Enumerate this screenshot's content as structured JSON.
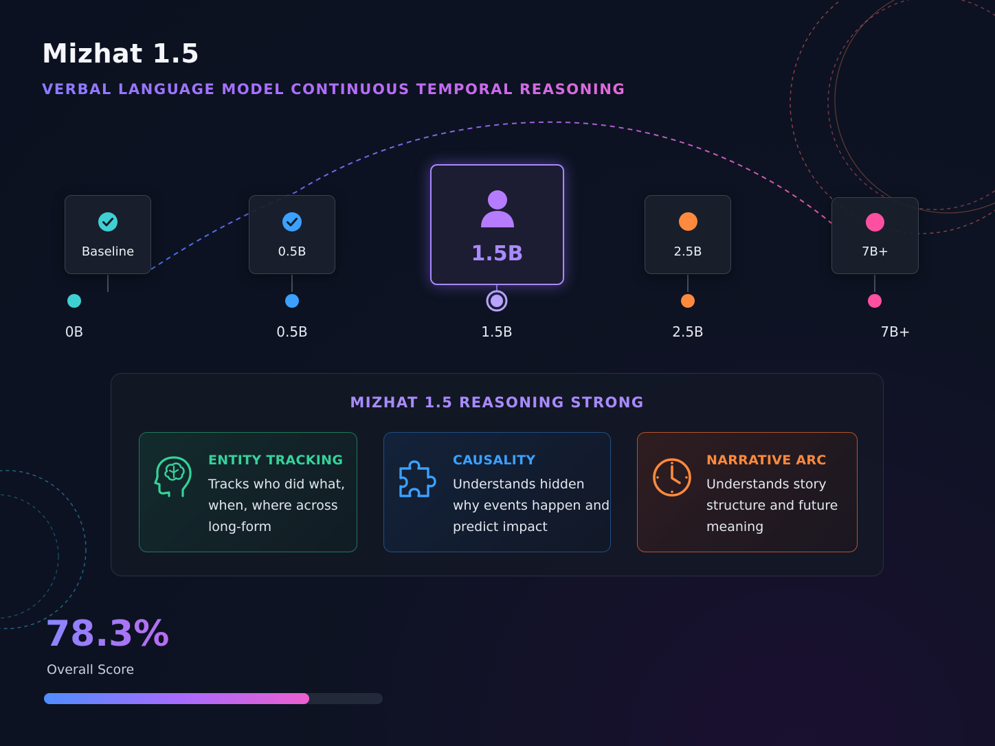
{
  "header": {
    "title": "Mizhat 1.5",
    "subtitle": "VERBAL LANGUAGE MODEL CONTINUOUS TEMPORAL REASONING"
  },
  "timeline": {
    "nodes": [
      {
        "label": "Baseline",
        "icon": "check-circle-icon",
        "color": "#3fd0d4"
      },
      {
        "label": "0.5B",
        "icon": "check-circle-icon",
        "color": "#3ba0ff"
      },
      {
        "label": "1.5B",
        "icon": "user-icon",
        "color": "#a98aff"
      },
      {
        "label": "2.5B",
        "icon": "dot-icon",
        "color": "#ff8a3d"
      },
      {
        "label": "7B+",
        "icon": "dot-icon",
        "color": "#ff4fa0"
      }
    ],
    "axis_labels": [
      "0B",
      "0.5B",
      "1.5B",
      "2.5B",
      "7B+"
    ],
    "gradient": [
      "#3fd0d4",
      "#3b9cff",
      "#9a6bff",
      "#d65fe6",
      "#ff8a3d",
      "#ff4fa0"
    ]
  },
  "panel": {
    "title": "MIZHAT 1.5 REASONING STRONG",
    "cards": [
      {
        "title": "ENTITY TRACKING",
        "body": "Tracks who did what, when, where across long-form",
        "icon": "brain-head-icon",
        "color": "#35d29a"
      },
      {
        "title": "CAUSALITY",
        "body": "Understands hidden why events happen and predict impact",
        "icon": "puzzle-icon",
        "color": "#3ba0ff"
      },
      {
        "title": "NARRATIVE ARC",
        "body": "Understands story structure and future meaning",
        "icon": "clock-icon",
        "color": "#ff8a3d"
      }
    ]
  },
  "score": {
    "value": "78.3%",
    "label": "Overall Score",
    "progress_fraction": 0.783
  }
}
